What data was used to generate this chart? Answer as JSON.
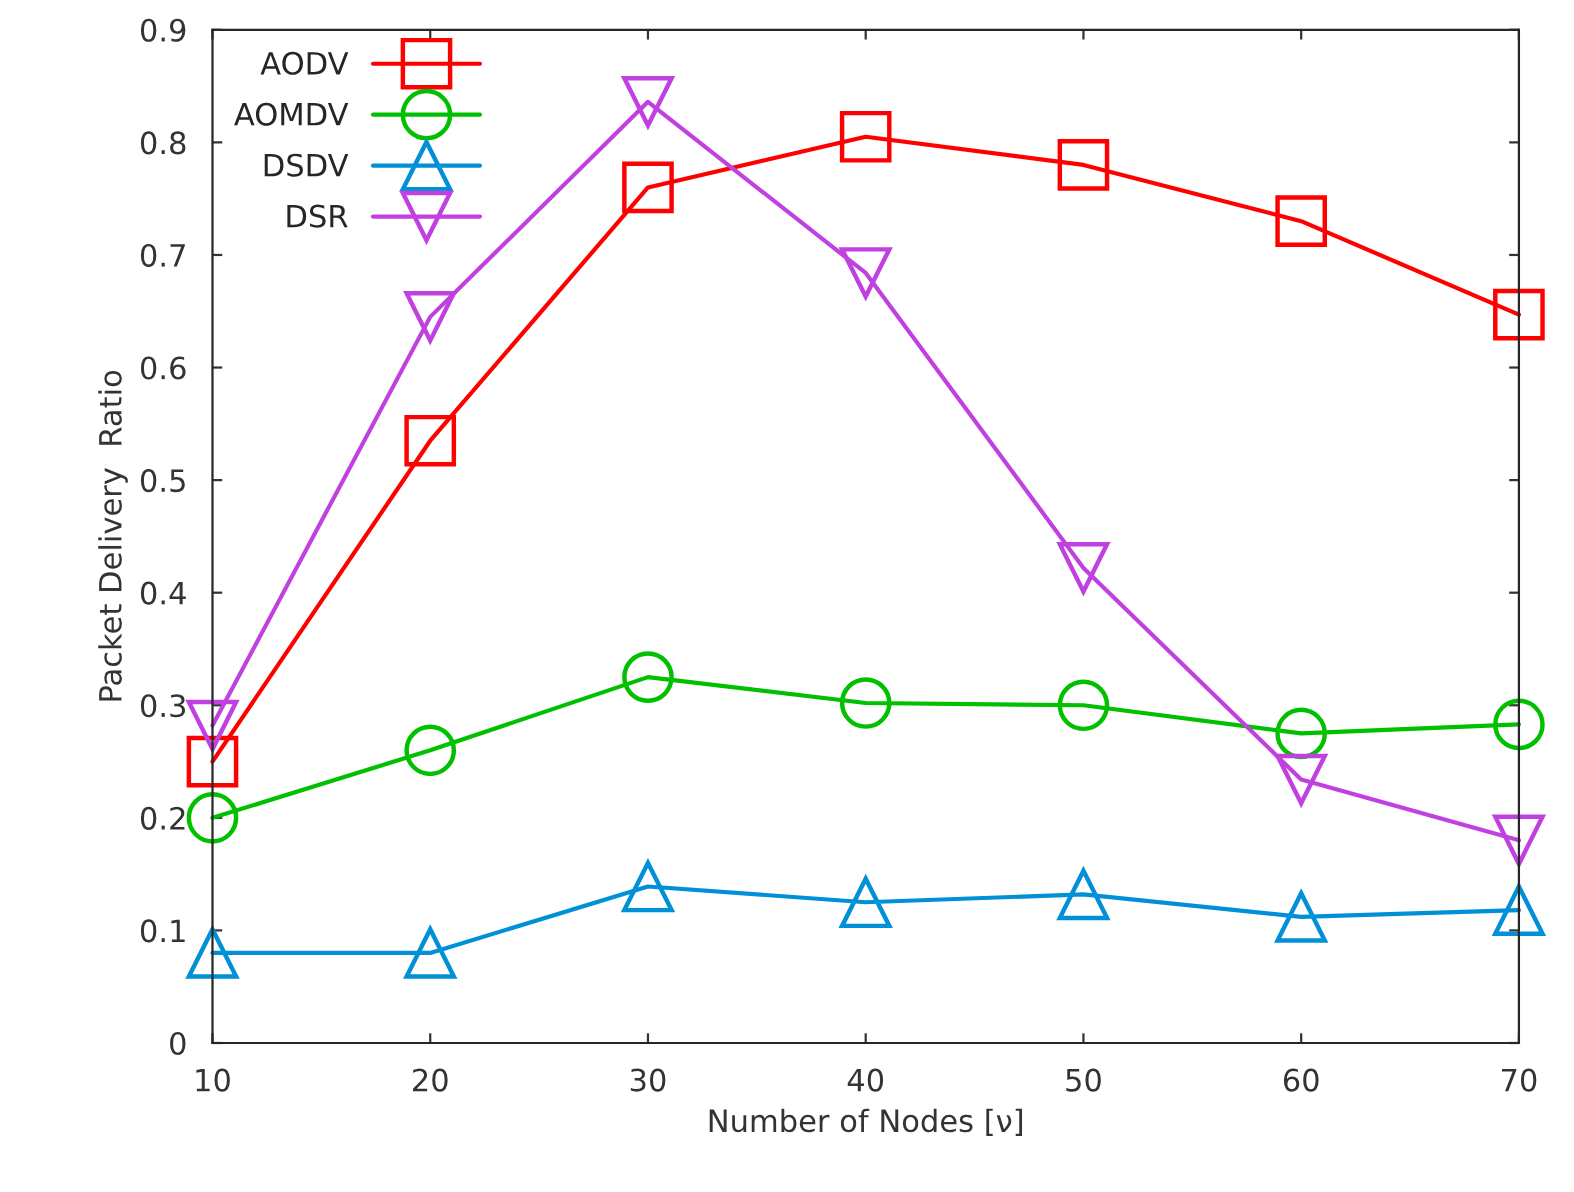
{
  "chart_data": {
    "type": "line",
    "xlabel": "Number of Nodes [ν]",
    "ylabel": "Packet Delivery  Ratio",
    "x": [
      10,
      20,
      30,
      40,
      50,
      60,
      70
    ],
    "series": [
      {
        "name": "AODV",
        "color": "#ff0000",
        "marker": "square",
        "values": [
          0.25,
          0.535,
          0.76,
          0.805,
          0.78,
          0.73,
          0.647
        ]
      },
      {
        "name": "AOMDV",
        "color": "#00c000",
        "marker": "circle",
        "values": [
          0.2,
          0.26,
          0.325,
          0.302,
          0.3,
          0.275,
          0.283
        ]
      },
      {
        "name": "DSDV",
        "color": "#0090d8",
        "marker": "triangle",
        "values": [
          0.08,
          0.08,
          0.139,
          0.125,
          0.132,
          0.112,
          0.118
        ]
      },
      {
        "name": "DSR",
        "color": "#c040e0",
        "marker": "triangle-down",
        "values": [
          0.282,
          0.645,
          0.836,
          0.684,
          0.422,
          0.234,
          0.18
        ]
      }
    ],
    "xlim": [
      10,
      70
    ],
    "xticks": [
      10,
      20,
      30,
      40,
      50,
      60,
      70
    ],
    "ylim": [
      0,
      0.9
    ],
    "yticks": [
      0,
      0.1,
      0.2,
      0.3,
      0.4,
      0.5,
      0.6,
      0.7,
      0.8,
      0.9
    ],
    "legend": "top left",
    "grid": false,
    "line_style": "solid"
  }
}
